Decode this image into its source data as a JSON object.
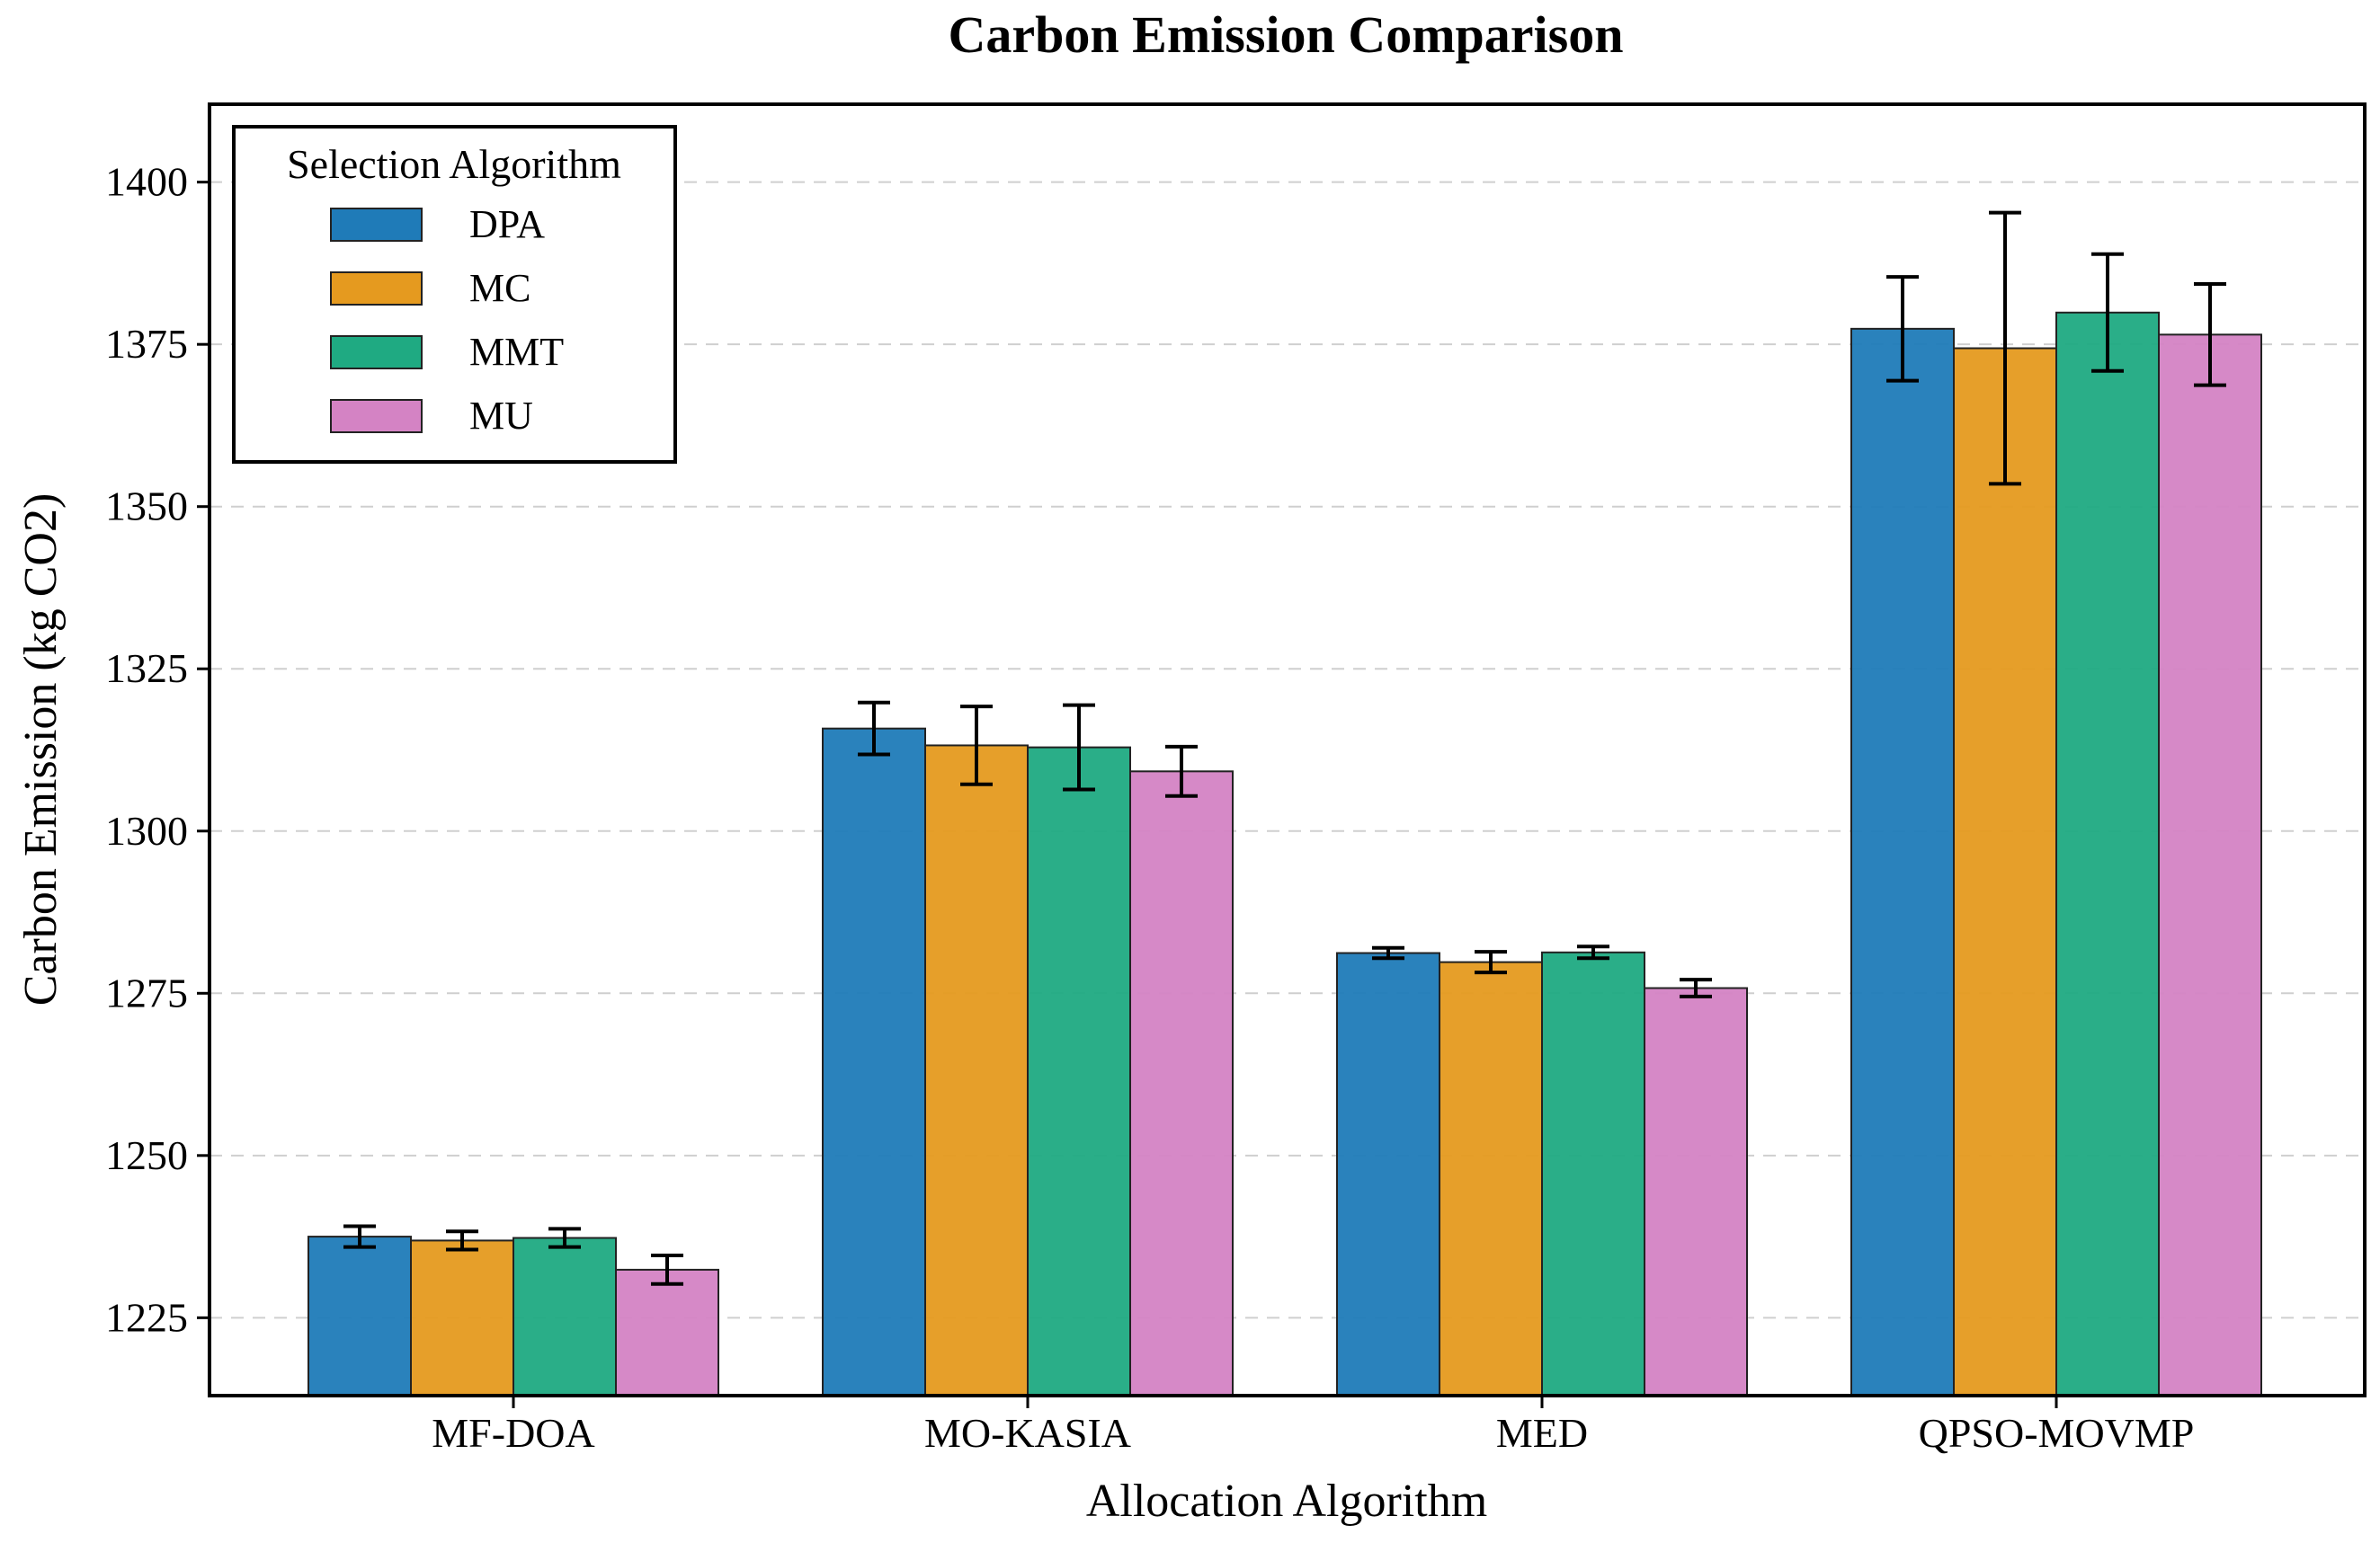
{
  "chart_data": {
    "type": "bar",
    "title": "Carbon Emission Comparison",
    "xlabel": "Allocation Algorithm",
    "ylabel": "Carbon Emission (kg CO2)",
    "ylim": [
      1213,
      1412
    ],
    "yticks": [
      1225,
      1250,
      1275,
      1300,
      1325,
      1350,
      1375,
      1400
    ],
    "grid": true,
    "categories": [
      "MF-DOA",
      "MO-KASIA",
      "MED",
      "QPSO-MOVMP"
    ],
    "legend": {
      "title": "Selection Algorithm",
      "position": "top-left"
    },
    "series": [
      {
        "name": "DPA",
        "color": "#1f7bb8",
        "values": [
          1237.5,
          1315.8,
          1281.2,
          1377.4
        ],
        "errors": [
          1.6,
          4.0,
          0.8,
          8.0
        ]
      },
      {
        "name": "MC",
        "color": "#e59a1f",
        "values": [
          1236.9,
          1313.2,
          1279.8,
          1374.4
        ],
        "errors": [
          1.4,
          6.0,
          1.6,
          20.9
        ]
      },
      {
        "name": "MMT",
        "color": "#1faa82",
        "values": [
          1237.3,
          1312.9,
          1281.3,
          1379.9
        ],
        "errors": [
          1.4,
          6.5,
          0.9,
          9.0
        ]
      },
      {
        "name": "MU",
        "color": "#d483c4",
        "values": [
          1232.4,
          1309.2,
          1275.8,
          1376.5
        ],
        "errors": [
          2.2,
          3.8,
          1.3,
          7.8
        ]
      }
    ]
  }
}
